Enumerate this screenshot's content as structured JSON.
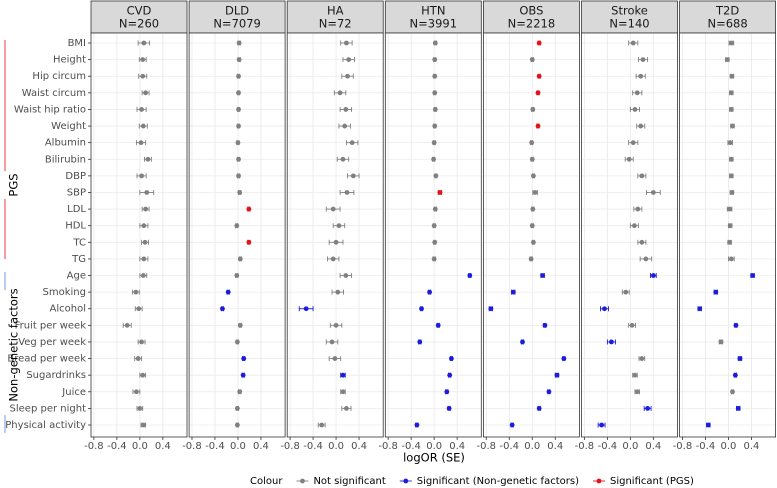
{
  "chart_data": {
    "type": "forest",
    "xlabel": "logOR (SE)",
    "xlim": [
      -0.85,
      0.82
    ],
    "xticks": [
      -0.8,
      -0.4,
      {
        "value": 0,
        "label": "0.0"
      },
      0.4
    ],
    "grid": true,
    "categories": [
      "BMI",
      "Height",
      "Hip circum",
      "Waist circum",
      "Waist hip ratio",
      "Weight",
      "Albumin",
      "Bilirubin",
      "DBP",
      "SBP",
      "LDL",
      "HDL",
      "TC",
      "TG",
      "Age",
      "Smoking",
      "Alcohol",
      "Fruit per week",
      "Veg per week",
      "Bread per week",
      "Sugardrinks",
      "Juice",
      "Sleep per night",
      "Physical activity"
    ],
    "groups": [
      {
        "label": "PGS",
        "color": "#e8383d"
      },
      {
        "label": "Non-genetic factors",
        "color": "#6f9fd8"
      }
    ],
    "legend": {
      "title": "Colour",
      "position": "bottom",
      "entries": [
        {
          "name": "Not significant",
          "color": "#808080"
        },
        {
          "name": "Significant (Non-genetic factors)",
          "color": "#1c1cdc"
        },
        {
          "name": "Significant (PGS)",
          "color": "#e3121a"
        }
      ]
    },
    "facets": [
      {
        "title": "CVD",
        "subtitle": "N=260",
        "values": [
          0.07,
          0.05,
          0.05,
          0.1,
          0.03,
          0.06,
          0.02,
          0.14,
          0.03,
          0.12,
          0.1,
          0.07,
          0.09,
          0.07,
          0.06,
          -0.07,
          -0.02,
          -0.22,
          0.03,
          -0.03,
          0.05,
          -0.06,
          0.0,
          0.06
        ],
        "errors": [
          0.1,
          0.06,
          0.07,
          0.06,
          0.08,
          0.07,
          0.08,
          0.06,
          0.08,
          0.12,
          0.06,
          0.07,
          0.06,
          0.07,
          0.06,
          0.06,
          0.06,
          0.07,
          0.06,
          0.06,
          0.05,
          0.06,
          0.05,
          0.04
        ],
        "colors": [
          "#808080",
          "#808080",
          "#808080",
          "#808080",
          "#808080",
          "#808080",
          "#808080",
          "#808080",
          "#808080",
          "#808080",
          "#808080",
          "#808080",
          "#808080",
          "#808080",
          "#808080",
          "#808080",
          "#808080",
          "#808080",
          "#808080",
          "#808080",
          "#808080",
          "#808080",
          "#808080",
          "#808080"
        ]
      },
      {
        "title": "DLD",
        "subtitle": "N=7079",
        "values": [
          0.02,
          0.02,
          0.01,
          0.01,
          0.01,
          0.01,
          0.0,
          0.01,
          0.01,
          0.03,
          0.19,
          -0.02,
          0.19,
          0.04,
          -0.02,
          -0.17,
          -0.27,
          0.04,
          -0.01,
          0.1,
          0.09,
          0.03,
          -0.01,
          -0.01
        ],
        "errors": [
          0.02,
          0.02,
          0.02,
          0.02,
          0.02,
          0.02,
          0.02,
          0.02,
          0.02,
          0.02,
          0.02,
          0.02,
          0.02,
          0.02,
          0.02,
          0.02,
          0.02,
          0.02,
          0.02,
          0.02,
          0.02,
          0.02,
          0.02,
          0.02
        ],
        "colors": [
          "#808080",
          "#808080",
          "#808080",
          "#808080",
          "#808080",
          "#808080",
          "#808080",
          "#808080",
          "#808080",
          "#808080",
          "#e3121a",
          "#808080",
          "#e3121a",
          "#808080",
          "#808080",
          "#1c1cdc",
          "#1c1cdc",
          "#808080",
          "#808080",
          "#1c1cdc",
          "#1c1cdc",
          "#808080",
          "#808080",
          "#808080"
        ]
      },
      {
        "title": "HA",
        "subtitle": "N=72",
        "values": [
          0.18,
          0.22,
          0.2,
          0.07,
          0.17,
          0.15,
          0.28,
          0.12,
          0.3,
          0.19,
          -0.05,
          0.05,
          0.0,
          -0.05,
          0.17,
          0.03,
          -0.52,
          0.0,
          -0.07,
          -0.02,
          0.12,
          0.12,
          0.18,
          -0.25
        ],
        "errors": [
          0.1,
          0.1,
          0.1,
          0.1,
          0.1,
          0.1,
          0.1,
          0.1,
          0.1,
          0.12,
          0.12,
          0.1,
          0.12,
          0.1,
          0.1,
          0.1,
          0.12,
          0.1,
          0.1,
          0.1,
          0.04,
          0.04,
          0.08,
          0.06
        ],
        "colors": [
          "#808080",
          "#808080",
          "#808080",
          "#808080",
          "#808080",
          "#808080",
          "#808080",
          "#808080",
          "#808080",
          "#808080",
          "#808080",
          "#808080",
          "#808080",
          "#808080",
          "#808080",
          "#808080",
          "#1c1cdc",
          "#808080",
          "#808080",
          "#808080",
          "#1c1cdc",
          "#808080",
          "#808080",
          "#808080"
        ]
      },
      {
        "title": "HTN",
        "subtitle": "N=3991",
        "values": [
          0.02,
          0.01,
          0.01,
          0.01,
          0.02,
          0.01,
          0.0,
          -0.01,
          0.03,
          0.1,
          0.02,
          0.0,
          0.01,
          0.0,
          0.62,
          -0.08,
          -0.22,
          0.07,
          -0.25,
          0.3,
          0.27,
          0.22,
          0.26,
          -0.3
        ],
        "errors": [
          0.02,
          0.02,
          0.02,
          0.02,
          0.02,
          0.02,
          0.02,
          0.02,
          0.02,
          0.03,
          0.02,
          0.02,
          0.02,
          0.02,
          0.02,
          0.02,
          0.02,
          0.02,
          0.02,
          0.02,
          0.02,
          0.02,
          0.02,
          0.02
        ],
        "colors": [
          "#808080",
          "#808080",
          "#808080",
          "#808080",
          "#808080",
          "#808080",
          "#808080",
          "#808080",
          "#808080",
          "#e3121a",
          "#808080",
          "#808080",
          "#808080",
          "#808080",
          "#1c1cdc",
          "#1c1cdc",
          "#1c1cdc",
          "#1c1cdc",
          "#1c1cdc",
          "#1c1cdc",
          "#1c1cdc",
          "#1c1cdc",
          "#1c1cdc",
          "#1c1cdc"
        ]
      },
      {
        "title": "OBS",
        "subtitle": "N=2218",
        "values": [
          0.12,
          0.0,
          0.12,
          0.1,
          0.01,
          0.1,
          -0.01,
          0.0,
          0.02,
          0.05,
          0.01,
          0.0,
          0.02,
          -0.02,
          0.18,
          -0.33,
          -0.72,
          0.22,
          -0.17,
          0.55,
          0.43,
          0.29,
          0.12,
          -0.35
        ],
        "errors": [
          0.02,
          0.02,
          0.02,
          0.02,
          0.02,
          0.02,
          0.02,
          0.02,
          0.02,
          0.04,
          0.02,
          0.02,
          0.02,
          0.02,
          0.03,
          0.03,
          0.03,
          0.02,
          0.02,
          0.02,
          0.03,
          0.02,
          0.02,
          0.02
        ],
        "colors": [
          "#e3121a",
          "#808080",
          "#e3121a",
          "#e3121a",
          "#808080",
          "#e3121a",
          "#808080",
          "#808080",
          "#808080",
          "#808080",
          "#808080",
          "#808080",
          "#808080",
          "#808080",
          "#1c1cdc",
          "#1c1cdc",
          "#1c1cdc",
          "#1c1cdc",
          "#1c1cdc",
          "#1c1cdc",
          "#1c1cdc",
          "#1c1cdc",
          "#1c1cdc",
          "#1c1cdc"
        ]
      },
      {
        "title": "Stroke",
        "subtitle": "N=140",
        "values": [
          0.05,
          0.22,
          0.18,
          0.12,
          0.08,
          0.18,
          0.05,
          -0.02,
          0.2,
          0.4,
          0.13,
          0.07,
          0.2,
          0.27,
          0.4,
          -0.08,
          -0.45,
          0.03,
          -0.33,
          0.2,
          0.08,
          0.12,
          0.3,
          -0.5
        ],
        "errors": [
          0.08,
          0.08,
          0.08,
          0.08,
          0.08,
          0.07,
          0.08,
          0.07,
          0.07,
          0.12,
          0.07,
          0.07,
          0.07,
          0.1,
          0.05,
          0.06,
          0.07,
          0.06,
          0.07,
          0.05,
          0.04,
          0.04,
          0.06,
          0.06
        ],
        "colors": [
          "#808080",
          "#808080",
          "#808080",
          "#808080",
          "#808080",
          "#808080",
          "#808080",
          "#808080",
          "#808080",
          "#808080",
          "#808080",
          "#808080",
          "#808080",
          "#808080",
          "#1c1cdc",
          "#808080",
          "#1c1cdc",
          "#808080",
          "#1c1cdc",
          "#808080",
          "#808080",
          "#808080",
          "#1c1cdc",
          "#1c1cdc"
        ]
      },
      {
        "title": "T2D",
        "subtitle": "N=688",
        "values": [
          0.05,
          -0.02,
          0.06,
          0.05,
          0.05,
          0.07,
          0.03,
          0.05,
          0.05,
          0.06,
          0.02,
          0.03,
          0.02,
          0.05,
          0.42,
          -0.22,
          -0.5,
          0.13,
          -0.13,
          0.2,
          0.12,
          0.07,
          0.17,
          -0.35
        ],
        "errors": [
          0.04,
          0.03,
          0.03,
          0.03,
          0.03,
          0.03,
          0.04,
          0.03,
          0.03,
          0.03,
          0.04,
          0.03,
          0.03,
          0.05,
          0.03,
          0.03,
          0.03,
          0.02,
          0.03,
          0.03,
          0.02,
          0.02,
          0.03,
          0.03
        ],
        "colors": [
          "#808080",
          "#808080",
          "#808080",
          "#808080",
          "#808080",
          "#808080",
          "#808080",
          "#808080",
          "#808080",
          "#808080",
          "#808080",
          "#808080",
          "#808080",
          "#808080",
          "#1c1cdc",
          "#1c1cdc",
          "#1c1cdc",
          "#1c1cdc",
          "#808080",
          "#1c1cdc",
          "#1c1cdc",
          "#808080",
          "#1c1cdc",
          "#1c1cdc"
        ]
      }
    ]
  }
}
